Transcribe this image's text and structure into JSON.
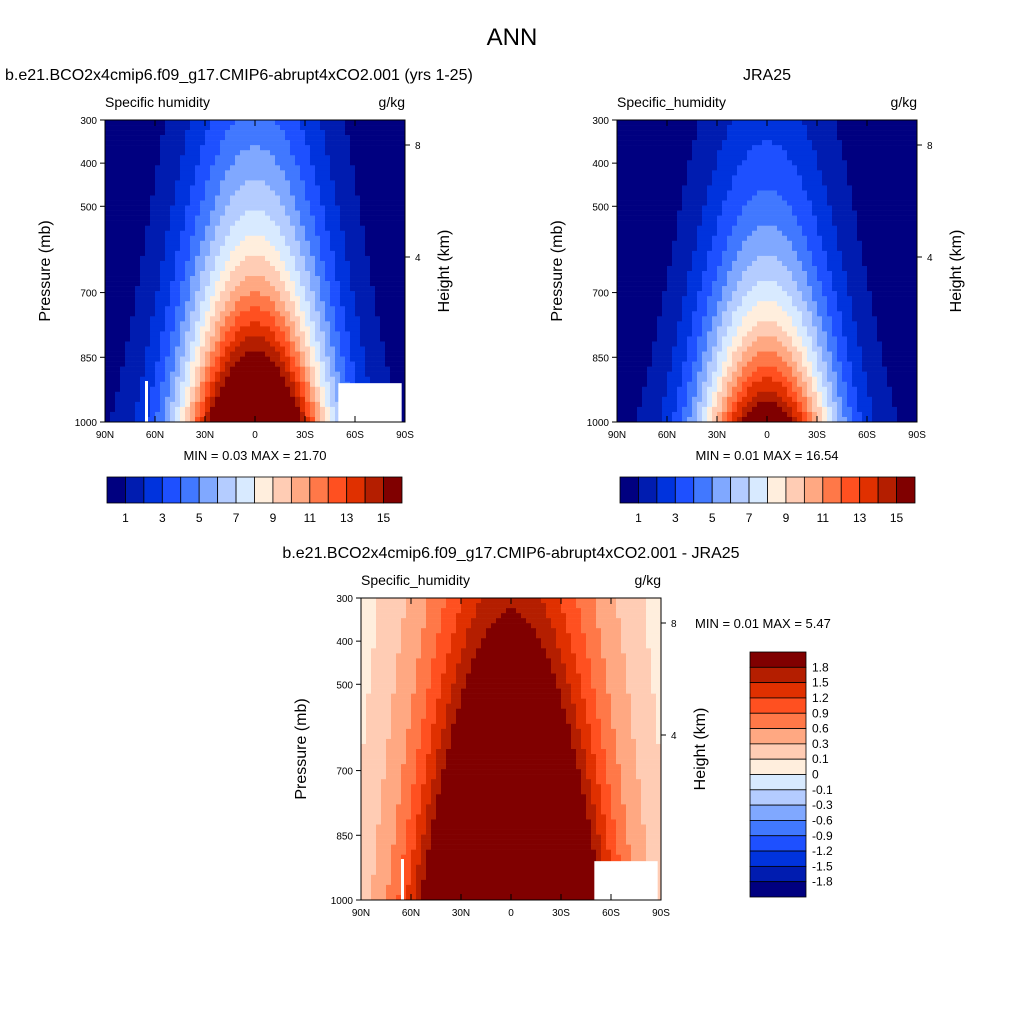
{
  "title": "ANN",
  "colors": [
    "#000080",
    "#001cb0",
    "#0033dd",
    "#1e50ff",
    "#4178ff",
    "#80a8ff",
    "#b4ccff",
    "#d8eaff",
    "#ffeedd",
    "#ffccb4",
    "#ffa882",
    "#ff7848",
    "#ff5020",
    "#e03000",
    "#b41e00",
    "#800000"
  ],
  "chart_data": [
    {
      "type": "heatmap",
      "panel_title": "b.e21.BCO2x4cmip6.f09_g17.CMIP6-abrupt4xCO2.001 (yrs 1-25)",
      "left_label": "Specific humidity",
      "right_label": "g/kg",
      "ylabel": "Pressure (mb)",
      "ylabel_right": "Height (km)",
      "xticks": [
        "90N",
        "60N",
        "30N",
        "0",
        "30S",
        "60S",
        "90S"
      ],
      "yticks": [
        300,
        400,
        500,
        700,
        850,
        1000
      ],
      "yticks_right": [
        8,
        4
      ],
      "ylim": [
        1000,
        300
      ],
      "xlim": [
        90,
        -90
      ],
      "min": 0.03,
      "max": 21.7,
      "stats": "MIN =   0.03  MAX =  21.70",
      "levels": [
        1,
        2,
        3,
        4,
        5,
        6,
        7,
        8,
        9,
        10,
        11,
        12,
        13,
        14,
        15
      ],
      "colorbar_labels": [
        "1",
        "3",
        "5",
        "7",
        "9",
        "11",
        "13",
        "15"
      ]
    },
    {
      "type": "heatmap",
      "panel_title": "JRA25",
      "left_label": "Specific_humidity",
      "right_label": "g/kg",
      "ylabel": "Pressure (mb)",
      "ylabel_right": "Height (km)",
      "xticks": [
        "90N",
        "60N",
        "30N",
        "0",
        "30S",
        "60S",
        "90S"
      ],
      "yticks": [
        300,
        400,
        500,
        700,
        850,
        1000
      ],
      "yticks_right": [
        8,
        4
      ],
      "ylim": [
        1000,
        300
      ],
      "xlim": [
        90,
        -90
      ],
      "min": 0.01,
      "max": 16.54,
      "stats": "MIN =   0.01  MAX =  16.54",
      "levels": [
        1,
        2,
        3,
        4,
        5,
        6,
        7,
        8,
        9,
        10,
        11,
        12,
        13,
        14,
        15
      ],
      "colorbar_labels": [
        "1",
        "3",
        "5",
        "7",
        "9",
        "11",
        "13",
        "15"
      ]
    },
    {
      "type": "heatmap",
      "panel_title": "b.e21.BCO2x4cmip6.f09_g17.CMIP6-abrupt4xCO2.001 - JRA25",
      "left_label": "Specific_humidity",
      "right_label": "g/kg",
      "ylabel": "Pressure (mb)",
      "ylabel_right": "Height (km)",
      "xticks": [
        "90N",
        "60N",
        "30N",
        "0",
        "30S",
        "60S",
        "90S"
      ],
      "yticks": [
        300,
        400,
        500,
        700,
        850,
        1000
      ],
      "yticks_right": [
        8,
        4
      ],
      "ylim": [
        1000,
        300
      ],
      "xlim": [
        90,
        -90
      ],
      "min": 0.01,
      "max": 5.47,
      "stats": "MIN =   0.01  MAX =   5.47",
      "levels": [
        -1.8,
        -1.5,
        -1.2,
        -0.9,
        -0.6,
        -0.3,
        -0.1,
        0,
        0.1,
        0.3,
        0.6,
        0.9,
        1.2,
        1.5,
        1.8
      ],
      "colorbar_labels": [
        "1.8",
        "1.5",
        "1.2",
        "0.9",
        "0.6",
        "0.3",
        "0.1",
        "0",
        "-0.1",
        "-0.3",
        "-0.6",
        "-0.9",
        "-1.2",
        "-1.5",
        "-1.8"
      ]
    }
  ]
}
